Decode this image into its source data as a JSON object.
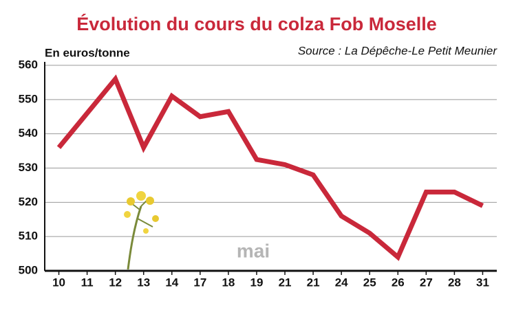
{
  "chart_data": {
    "type": "line",
    "title": "Évolution du cours du colza Fob Moselle",
    "y_label": "En euros/tonne",
    "source": "Source : La Dépêche-Le Petit Meunier",
    "annotation": "mai",
    "categories": [
      "10",
      "11",
      "12",
      "13",
      "14",
      "17",
      "18",
      "19",
      "21",
      "21",
      "24",
      "25",
      "26",
      "27",
      "28",
      "31"
    ],
    "values": [
      536,
      546,
      556,
      536,
      551,
      545,
      546.5,
      532.5,
      531,
      528,
      516,
      511,
      504,
      523,
      523,
      519
    ],
    "color": "#c9283a",
    "ylim": [
      500,
      560
    ],
    "yticks": [
      500,
      510,
      520,
      530,
      540,
      550,
      560
    ],
    "grid": true
  }
}
